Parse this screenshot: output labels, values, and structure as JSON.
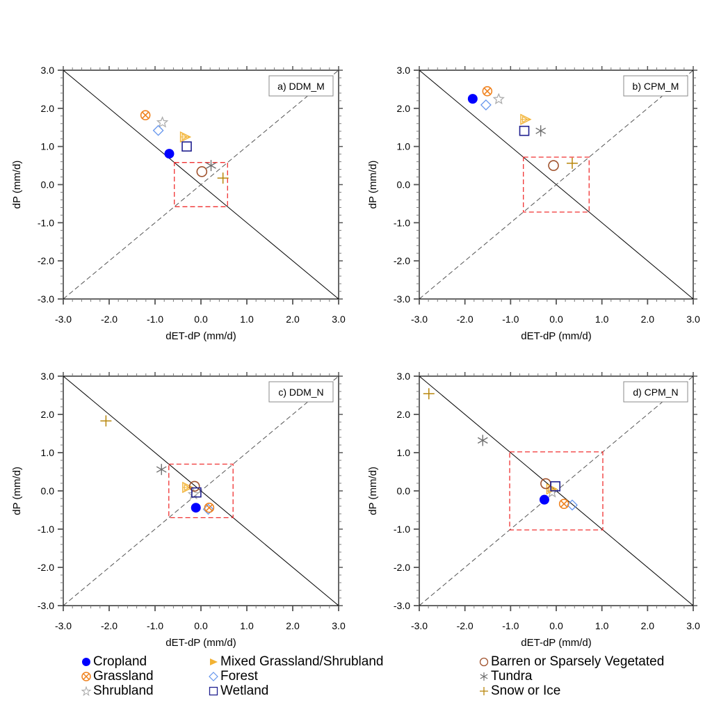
{
  "chart_data": {
    "type": "scatter",
    "xlabel": "dET-dP (mm/d)",
    "ylabel": "dP (mm/d)",
    "xlim": [
      -3.0,
      3.0
    ],
    "ylim": [
      -3.0,
      3.0
    ],
    "xticks": [
      "-3.0",
      "-2.0",
      "-1.0",
      "0.0",
      "1.0",
      "2.0",
      "3.0"
    ],
    "yticks": [
      "3.0",
      "2.0",
      "1.0",
      "0.0",
      "-1.0",
      "-2.0",
      "-3.0"
    ],
    "grid": false,
    "reference_lines": [
      {
        "name": "y = -x",
        "style": "solid"
      },
      {
        "name": "y = x",
        "style": "dashed"
      }
    ],
    "legend_position": "bottom",
    "categories": [
      {
        "key": "cropland",
        "label": "Cropland",
        "marker": "filled-circle",
        "color": "#0000ff"
      },
      {
        "key": "grassland",
        "label": "Grassland",
        "marker": "circle-x",
        "color": "#f0821e"
      },
      {
        "key": "shrubland",
        "label": "Shrubland",
        "marker": "star",
        "color": "#a8a8a8"
      },
      {
        "key": "mixed",
        "label": "Mixed Grassland/Shrubland",
        "marker": "hatched-triangle",
        "color": "#f2b233"
      },
      {
        "key": "forest",
        "label": "Forest",
        "marker": "diamond",
        "color": "#6495ed"
      },
      {
        "key": "wetland",
        "label": "Wetland",
        "marker": "square",
        "color": "#1f1f8f"
      },
      {
        "key": "barren",
        "label": "Barren or Sparsely Vegetated",
        "marker": "circle",
        "color": "#a0522d"
      },
      {
        "key": "tundra",
        "label": "Tundra",
        "marker": "asterisk",
        "color": "#6e6e6e"
      },
      {
        "key": "snow",
        "label": "Snow or Ice",
        "marker": "plus",
        "color": "#b8860b"
      }
    ],
    "panels": [
      {
        "id": "a",
        "title": "a) DDM_M",
        "box_half_width": 0.58,
        "points": {
          "cropland": [
            -0.69,
            0.81
          ],
          "grassland": [
            -1.21,
            1.82
          ],
          "shrubland": [
            -0.84,
            1.63
          ],
          "mixed": [
            -0.34,
            1.25
          ],
          "forest": [
            -0.93,
            1.42
          ],
          "wetland": [
            -0.31,
            1.0
          ],
          "barren": [
            0.02,
            0.34
          ],
          "tundra": [
            0.22,
            0.5
          ],
          "snow": [
            0.48,
            0.17
          ]
        }
      },
      {
        "id": "b",
        "title": "b) CPM_M",
        "box_half_width": 0.72,
        "points": {
          "cropland": [
            -1.83,
            2.25
          ],
          "grassland": [
            -1.51,
            2.45
          ],
          "shrubland": [
            -1.26,
            2.24
          ],
          "mixed": [
            -0.67,
            1.71
          ],
          "forest": [
            -1.54,
            2.09
          ],
          "wetland": [
            -0.7,
            1.41
          ],
          "barren": [
            -0.06,
            0.5
          ],
          "tundra": [
            -0.34,
            1.41
          ],
          "snow": [
            0.35,
            0.56
          ]
        }
      },
      {
        "id": "c",
        "title": "c) DDM_N",
        "box_half_width": 0.7,
        "points": {
          "cropland": [
            -0.11,
            -0.44
          ],
          "grassland": [
            0.18,
            -0.44
          ],
          "shrubland": [
            -0.16,
            -0.09
          ],
          "mixed": [
            -0.29,
            0.09
          ],
          "forest": [
            0.16,
            -0.48
          ],
          "wetland": [
            -0.1,
            -0.04
          ],
          "barren": [
            -0.14,
            0.12
          ],
          "tundra": [
            -0.86,
            0.56
          ],
          "snow": [
            -2.07,
            1.83
          ]
        }
      },
      {
        "id": "d",
        "title": "d) CPM_N",
        "box_half_width": 1.02,
        "points": {
          "cropland": [
            -0.26,
            -0.23
          ],
          "grassland": [
            0.17,
            -0.34
          ],
          "shrubland": [
            -0.09,
            -0.04
          ],
          "mixed": [
            -0.1,
            0.05
          ],
          "forest": [
            0.35,
            -0.37
          ],
          "wetland": [
            -0.02,
            0.12
          ],
          "barren": [
            -0.23,
            0.19
          ],
          "tundra": [
            -1.61,
            1.32
          ],
          "snow": [
            -2.79,
            2.54
          ]
        }
      }
    ]
  },
  "legend": {
    "items": [
      {
        "key": "cropland",
        "label": "Cropland"
      },
      {
        "key": "grassland",
        "label": "Grassland"
      },
      {
        "key": "shrubland",
        "label": "Shrubland"
      },
      {
        "key": "mixed",
        "label": "Mixed Grassland/Shrubland"
      },
      {
        "key": "forest",
        "label": "Forest"
      },
      {
        "key": "wetland",
        "label": "Wetland"
      },
      {
        "key": "barren",
        "label": "Barren or Sparsely Vegetated"
      },
      {
        "key": "tundra",
        "label": "Tundra"
      },
      {
        "key": "snow",
        "label": "Snow or Ice"
      }
    ]
  }
}
